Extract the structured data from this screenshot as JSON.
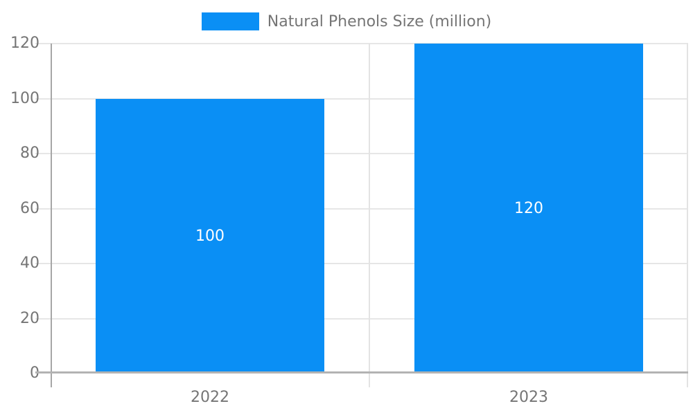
{
  "chart_data": {
    "type": "bar",
    "categories": [
      "2022",
      "2023"
    ],
    "series": [
      {
        "name": "Natural Phenols Size (million)",
        "values": [
          100,
          120
        ]
      }
    ],
    "bar_value_labels": [
      "100",
      "120"
    ],
    "title": "",
    "xlabel": "",
    "ylabel": "",
    "ylim": [
      0,
      120
    ],
    "yticks": [
      0,
      20,
      40,
      60,
      80,
      100,
      120
    ],
    "grid": true,
    "legend_position": "top-center",
    "colors": {
      "bar": "#0a8ff5",
      "bar_label_text": "#ffffff",
      "tick_text": "#757575",
      "legend_text": "#757575",
      "gridline": "#e6e6e6",
      "y_axis_line": "#a6a6a6",
      "baseline": "#b3b3b3",
      "background": "#ffffff"
    }
  }
}
